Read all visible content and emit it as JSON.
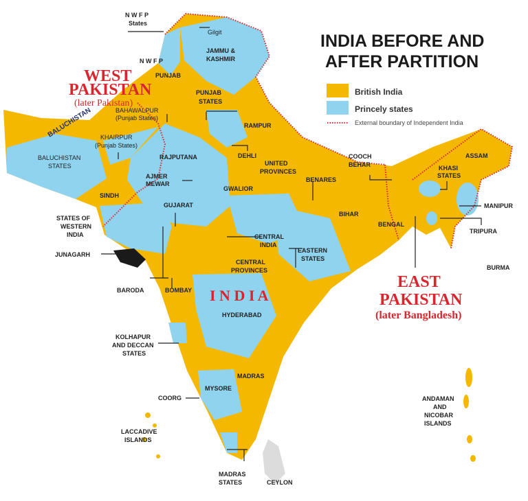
{
  "title": {
    "line1": "INDIA BEFORE AND",
    "line2": "AFTER PARTITION"
  },
  "legend": {
    "items": [
      {
        "label": "British India",
        "color": "#f5b800"
      },
      {
        "label": "Princely states",
        "color": "#8fd3ef"
      },
      {
        "label": "External boundary of Independent India",
        "color": "#d8262e"
      }
    ]
  },
  "colors": {
    "british_india": "#f5b800",
    "princely_states": "#8fd3ef",
    "boundary": "#d8262e",
    "annotation": "#d8262e",
    "junagarh": "#1a1a1a",
    "ceylon": "#dcdcdc"
  },
  "regions": {
    "west_pakistan": {
      "line1": "WEST",
      "line2": "PAKISTAN",
      "note": "(later Pakistan)"
    },
    "east_pakistan": {
      "line1": "EAST",
      "line2": "PAKISTAN",
      "note": "(later Bangladesh)"
    },
    "india": "I N D I A"
  },
  "labels": {
    "nwfp_states_1": "N W F P",
    "nwfp_states_2": "States",
    "gilgit": "Gilgit",
    "jk_1": "JAMMU &",
    "jk_2": "KASHMIR",
    "nwfp": "N W F P",
    "punjab": "PUNJAB",
    "punjab_states_1": "PUNJAB",
    "punjab_states_2": "STATES",
    "baluchistan": "BALUCHISTAN",
    "bahawalpur_1": "BAHAWALPUR",
    "bahawalpur_2": "(Punjab States)",
    "khairpur_1": "KHAIRPUR",
    "khairpur_2": "(Punjab States)",
    "rampur": "RAMPUR",
    "dehli": "DEHLI",
    "baluchistan_states_1": "BALUCHISTAN",
    "baluchistan_states_2": "STATES",
    "rajputana": "RAJPUTANA",
    "ajmer_1": "AJMER",
    "ajmer_2": "MEWAR",
    "gwalior": "GWALIOR",
    "up_1": "UNITED",
    "up_2": "PROVINCES",
    "benares": "BENARES",
    "cooch_1": "COOCH",
    "cooch_2": "BEHAR",
    "assam": "ASSAM",
    "khasi_1": "KHASI",
    "khasi_2": "STATES",
    "manipur": "MANIPUR",
    "tripura": "TRIPURA",
    "sindh": "SINDH",
    "gujarat": "GUJARAT",
    "sow_1": "STATES OF",
    "sow_2": "WESTERN",
    "sow_3": "INDIA",
    "junagarh": "JUNAGARH",
    "central_india_1": "CENTRAL",
    "central_india_2": "INDIA",
    "eastern_states_1": "EASTERN",
    "eastern_states_2": "STATES",
    "bihar": "BIHAR",
    "bengal": "BENGAL",
    "cp_1": "CENTRAL",
    "cp_2": "PROVINCES",
    "burma": "BURMA",
    "baroda": "BARODA",
    "bombay": "BOMBAY",
    "hyderabad": "HYDERABAD",
    "kolhapur_1": "KOLHAPUR",
    "kolhapur_2": "AND DECCAN",
    "kolhapur_3": "STATES",
    "madras": "MADRAS",
    "mysore": "MYSORE",
    "coorg": "COORG",
    "andaman_1": "ANDAMAN",
    "andaman_2": "AND",
    "andaman_3": "NICOBAR",
    "andaman_4": "ISLANDS",
    "laccadive_1": "LACCADIVE",
    "laccadive_2": "ISLANDS",
    "madras_states_1": "MADRAS",
    "madras_states_2": "STATES",
    "ceylon": "CEYLON"
  }
}
